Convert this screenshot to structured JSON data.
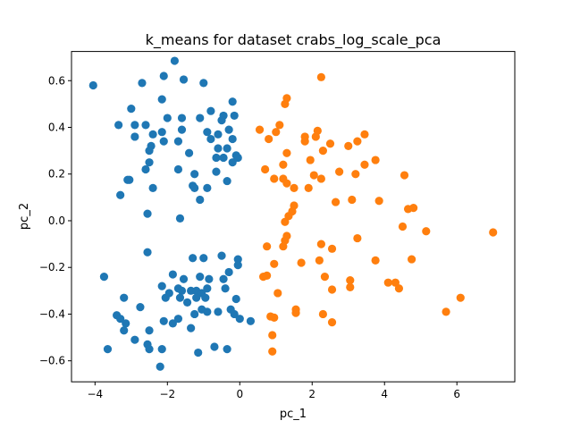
{
  "chart_data": {
    "type": "scatter",
    "title": "k_means for dataset crabs_log_scale_pca",
    "xlabel": "pc_1",
    "ylabel": "pc_2",
    "xlim": [
      -4.65,
      7.6
    ],
    "ylim": [
      -0.69,
      0.725
    ],
    "xticks": [
      -4,
      -2,
      0,
      2,
      4,
      6
    ],
    "xtick_labels": [
      "−4",
      "−2",
      "0",
      "2",
      "4",
      "6"
    ],
    "yticks": [
      -0.6,
      -0.4,
      -0.2,
      0.0,
      0.2,
      0.4,
      0.6
    ],
    "ytick_labels": [
      "−0.6",
      "−0.4",
      "−0.2",
      "0.0",
      "0.2",
      "0.4",
      "0.6"
    ],
    "grid": false,
    "legend": false,
    "series": [
      {
        "color": "#1f77b4",
        "points": [
          [
            -4.05,
            0.58
          ],
          [
            -1.8,
            0.685
          ],
          [
            -2.1,
            0.62
          ],
          [
            -2.7,
            0.59
          ],
          [
            -1.55,
            0.605
          ],
          [
            -1.0,
            0.59
          ],
          [
            -2.15,
            0.52
          ],
          [
            -3.0,
            0.48
          ],
          [
            -0.2,
            0.51
          ],
          [
            -3.35,
            0.41
          ],
          [
            -2.9,
            0.41
          ],
          [
            -2.6,
            0.41
          ],
          [
            -1.6,
            0.44
          ],
          [
            -2.0,
            0.44
          ],
          [
            -1.1,
            0.44
          ],
          [
            -0.8,
            0.47
          ],
          [
            -0.45,
            0.45
          ],
          [
            -0.15,
            0.45
          ],
          [
            -0.5,
            0.43
          ],
          [
            -2.15,
            0.38
          ],
          [
            -1.6,
            0.39
          ],
          [
            -0.9,
            0.38
          ],
          [
            -0.6,
            0.37
          ],
          [
            -0.3,
            0.39
          ],
          [
            -0.8,
            0.35
          ],
          [
            -2.9,
            0.36
          ],
          [
            -2.4,
            0.37
          ],
          [
            -2.1,
            0.34
          ],
          [
            -2.45,
            0.32
          ],
          [
            -2.5,
            0.3
          ],
          [
            -0.2,
            0.35
          ],
          [
            -1.7,
            0.34
          ],
          [
            -0.35,
            0.31
          ],
          [
            -0.6,
            0.31
          ],
          [
            -1.4,
            0.29
          ],
          [
            -0.65,
            0.27
          ],
          [
            -0.45,
            0.27
          ],
          [
            -0.1,
            0.28
          ],
          [
            -0.2,
            0.25
          ],
          [
            -0.05,
            0.27
          ],
          [
            -2.5,
            0.25
          ],
          [
            -2.6,
            0.22
          ],
          [
            -1.7,
            0.22
          ],
          [
            -1.25,
            0.2
          ],
          [
            -0.65,
            0.21
          ],
          [
            -3.1,
            0.175
          ],
          [
            -3.05,
            0.175
          ],
          [
            -1.3,
            0.15
          ],
          [
            -1.25,
            0.14
          ],
          [
            -0.9,
            0.14
          ],
          [
            -0.35,
            0.17
          ],
          [
            -2.4,
            0.14
          ],
          [
            -3.3,
            0.11
          ],
          [
            -1.1,
            0.09
          ],
          [
            -2.55,
            0.03
          ],
          [
            -1.65,
            0.01
          ],
          [
            -2.55,
            -0.135
          ],
          [
            -1.3,
            -0.16
          ],
          [
            -1.0,
            -0.16
          ],
          [
            -0.5,
            -0.15
          ],
          [
            -0.05,
            -0.165
          ],
          [
            -0.05,
            -0.19
          ],
          [
            -0.3,
            -0.22
          ],
          [
            -1.85,
            -0.23
          ],
          [
            -1.55,
            -0.25
          ],
          [
            -1.1,
            -0.24
          ],
          [
            -0.85,
            -0.25
          ],
          [
            -0.45,
            -0.25
          ],
          [
            -3.75,
            -0.24
          ],
          [
            -2.15,
            -0.28
          ],
          [
            -1.7,
            -0.29
          ],
          [
            -1.6,
            -0.3
          ],
          [
            -1.35,
            -0.3
          ],
          [
            -1.2,
            -0.3
          ],
          [
            -1.05,
            -0.31
          ],
          [
            -0.9,
            -0.29
          ],
          [
            -0.4,
            -0.29
          ],
          [
            -1.95,
            -0.31
          ],
          [
            -1.65,
            -0.33
          ],
          [
            -1.2,
            -0.33
          ],
          [
            -0.95,
            -0.33
          ],
          [
            -2.05,
            -0.33
          ],
          [
            -1.45,
            -0.35
          ],
          [
            -0.1,
            -0.335
          ],
          [
            -3.2,
            -0.33
          ],
          [
            -2.75,
            -0.37
          ],
          [
            -1.05,
            -0.38
          ],
          [
            -0.9,
            -0.39
          ],
          [
            -0.6,
            -0.39
          ],
          [
            -0.25,
            -0.38
          ],
          [
            -3.4,
            -0.405
          ],
          [
            -3.3,
            -0.42
          ],
          [
            -2.1,
            -0.43
          ],
          [
            -1.7,
            -0.42
          ],
          [
            -1.25,
            -0.4
          ],
          [
            -0.15,
            -0.4
          ],
          [
            0.0,
            -0.42
          ],
          [
            0.3,
            -0.43
          ],
          [
            -3.15,
            -0.44
          ],
          [
            -1.85,
            -0.44
          ],
          [
            -1.35,
            -0.46
          ],
          [
            -3.2,
            -0.47
          ],
          [
            -2.5,
            -0.47
          ],
          [
            -2.9,
            -0.51
          ],
          [
            -2.55,
            -0.53
          ],
          [
            -3.65,
            -0.55
          ],
          [
            -2.5,
            -0.55
          ],
          [
            -2.15,
            -0.55
          ],
          [
            -0.7,
            -0.54
          ],
          [
            -0.35,
            -0.55
          ],
          [
            -1.15,
            -0.565
          ],
          [
            -2.2,
            -0.625
          ]
        ]
      },
      {
        "color": "#ff7f0e",
        "points": [
          [
            2.25,
            0.615
          ],
          [
            1.3,
            0.525
          ],
          [
            1.25,
            0.5
          ],
          [
            1.8,
            0.36
          ],
          [
            2.15,
            0.385
          ],
          [
            2.1,
            0.36
          ],
          [
            0.55,
            0.39
          ],
          [
            1.1,
            0.41
          ],
          [
            1.0,
            0.38
          ],
          [
            0.8,
            0.35
          ],
          [
            1.8,
            0.34
          ],
          [
            3.45,
            0.37
          ],
          [
            3.25,
            0.34
          ],
          [
            2.5,
            0.33
          ],
          [
            3.0,
            0.32
          ],
          [
            2.3,
            0.3
          ],
          [
            1.3,
            0.29
          ],
          [
            1.95,
            0.26
          ],
          [
            3.75,
            0.26
          ],
          [
            3.45,
            0.24
          ],
          [
            0.7,
            0.22
          ],
          [
            1.2,
            0.24
          ],
          [
            2.75,
            0.21
          ],
          [
            3.2,
            0.2
          ],
          [
            4.55,
            0.195
          ],
          [
            2.05,
            0.195
          ],
          [
            2.25,
            0.18
          ],
          [
            0.95,
            0.18
          ],
          [
            1.2,
            0.18
          ],
          [
            1.3,
            0.16
          ],
          [
            1.5,
            0.14
          ],
          [
            1.9,
            0.14
          ],
          [
            3.1,
            0.09
          ],
          [
            3.85,
            0.085
          ],
          [
            2.65,
            0.08
          ],
          [
            1.5,
            0.065
          ],
          [
            1.45,
            0.04
          ],
          [
            4.65,
            0.05
          ],
          [
            4.8,
            0.055
          ],
          [
            1.35,
            0.02
          ],
          [
            1.25,
            -0.005
          ],
          [
            4.5,
            -0.025
          ],
          [
            5.15,
            -0.045
          ],
          [
            7.0,
            -0.05
          ],
          [
            1.3,
            -0.065
          ],
          [
            3.25,
            -0.075
          ],
          [
            1.25,
            -0.085
          ],
          [
            2.25,
            -0.1
          ],
          [
            0.75,
            -0.11
          ],
          [
            1.2,
            -0.11
          ],
          [
            2.55,
            -0.12
          ],
          [
            4.75,
            -0.165
          ],
          [
            0.95,
            -0.185
          ],
          [
            1.7,
            -0.18
          ],
          [
            2.2,
            -0.17
          ],
          [
            3.75,
            -0.17
          ],
          [
            0.75,
            -0.235
          ],
          [
            0.65,
            -0.24
          ],
          [
            2.35,
            -0.24
          ],
          [
            4.1,
            -0.265
          ],
          [
            4.3,
            -0.265
          ],
          [
            3.05,
            -0.255
          ],
          [
            3.05,
            -0.285
          ],
          [
            4.4,
            -0.29
          ],
          [
            2.55,
            -0.295
          ],
          [
            1.05,
            -0.31
          ],
          [
            6.1,
            -0.33
          ],
          [
            1.55,
            -0.38
          ],
          [
            0.85,
            -0.41
          ],
          [
            0.95,
            -0.415
          ],
          [
            1.55,
            -0.395
          ],
          [
            2.3,
            -0.4
          ],
          [
            5.7,
            -0.39
          ],
          [
            2.55,
            -0.435
          ],
          [
            0.9,
            -0.49
          ],
          [
            0.9,
            -0.56
          ]
        ]
      }
    ]
  }
}
